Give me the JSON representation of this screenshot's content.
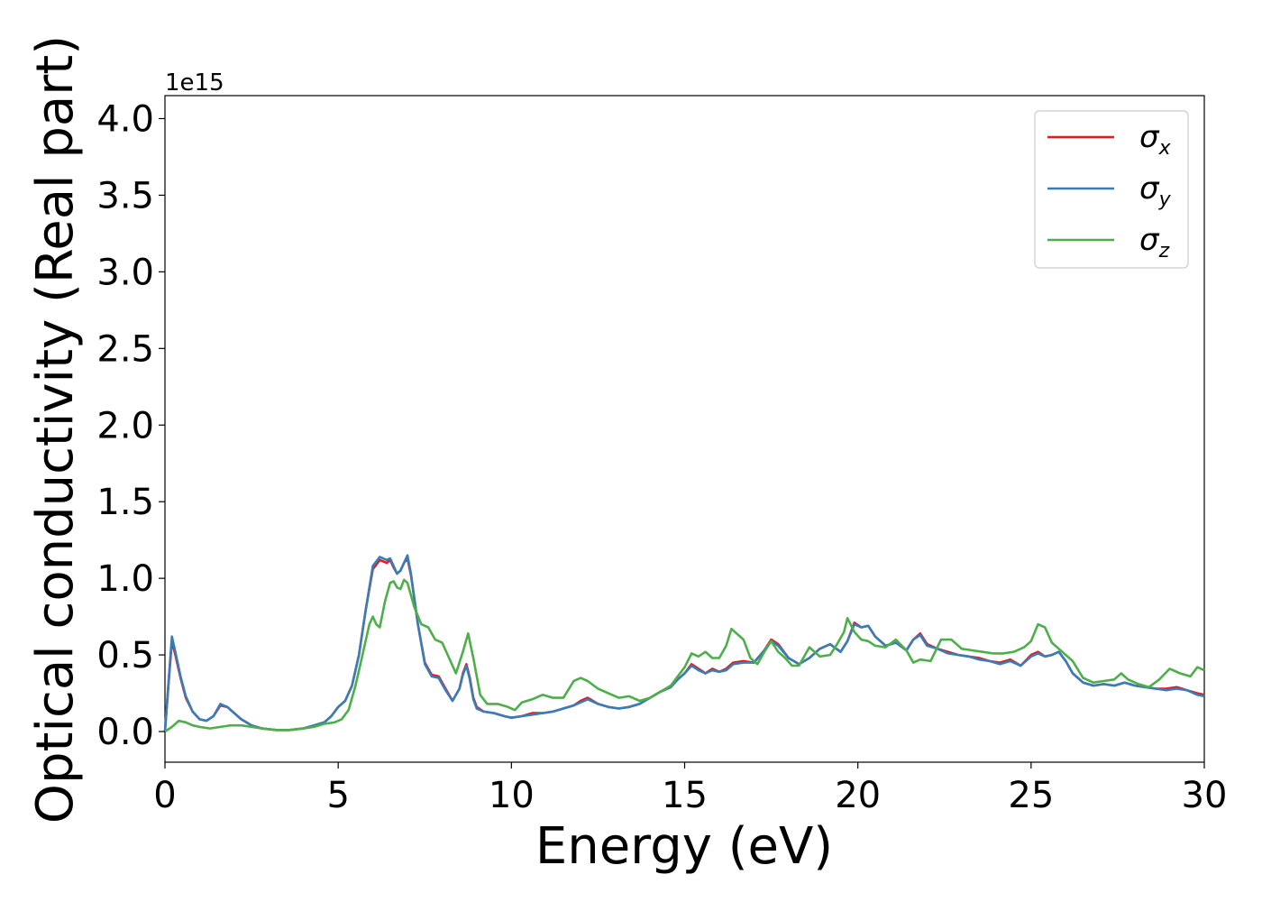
{
  "chart_data": {
    "type": "line",
    "xlabel": "Energy (eV)",
    "ylabel": "Optical conductivity (Real part)",
    "y_offset_text": "1e15",
    "xlim": [
      0,
      30
    ],
    "ylim": [
      -0.2,
      4.15
    ],
    "x_ticks": [
      0,
      5,
      10,
      15,
      20,
      25,
      30
    ],
    "x_tick_labels": [
      "0",
      "5",
      "10",
      "15",
      "20",
      "25",
      "30"
    ],
    "y_ticks": [
      0.0,
      0.5,
      1.0,
      1.5,
      2.0,
      2.5,
      3.0,
      3.5,
      4.0
    ],
    "y_tick_labels": [
      "0.0",
      "0.5",
      "1.0",
      "1.5",
      "2.0",
      "2.5",
      "3.0",
      "3.5",
      "4.0"
    ],
    "grid": false,
    "legend_position": "top-right",
    "series": [
      {
        "name": "σ",
        "subscript": "x",
        "color": "#e41a1c",
        "x": [
          0,
          0.1,
          0.2,
          0.3,
          0.45,
          0.6,
          0.8,
          1.0,
          1.2,
          1.4,
          1.6,
          1.8,
          2.0,
          2.2,
          2.5,
          2.8,
          3.2,
          3.6,
          4.0,
          4.3,
          4.6,
          4.8,
          5.0,
          5.2,
          5.4,
          5.6,
          5.8,
          6.0,
          6.2,
          6.4,
          6.5,
          6.6,
          6.7,
          6.8,
          6.9,
          7.0,
          7.1,
          7.3,
          7.5,
          7.7,
          7.9,
          8.1,
          8.3,
          8.5,
          8.6,
          8.7,
          8.8,
          8.9,
          9.0,
          9.2,
          9.5,
          9.8,
          10.0,
          10.3,
          10.6,
          10.9,
          11.2,
          11.5,
          11.8,
          12.0,
          12.2,
          12.5,
          12.8,
          13.1,
          13.4,
          13.7,
          14.0,
          14.3,
          14.6,
          14.8,
          15.0,
          15.2,
          15.4,
          15.6,
          15.8,
          16.0,
          16.2,
          16.4,
          16.7,
          17.0,
          17.3,
          17.5,
          17.7,
          18.0,
          18.3,
          18.6,
          18.9,
          19.2,
          19.5,
          19.7,
          19.9,
          20.1,
          20.3,
          20.5,
          20.8,
          21.1,
          21.4,
          21.6,
          21.8,
          22.0,
          22.3,
          22.6,
          22.9,
          23.2,
          23.5,
          23.8,
          24.1,
          24.4,
          24.7,
          25.0,
          25.2,
          25.4,
          25.6,
          25.8,
          26.0,
          26.2,
          26.5,
          26.8,
          27.1,
          27.4,
          27.7,
          28.0,
          28.3,
          28.6,
          28.9,
          29.2,
          29.5,
          29.8,
          30.0
        ],
        "y": [
          0.0,
          0.3,
          0.59,
          0.5,
          0.35,
          0.22,
          0.13,
          0.08,
          0.07,
          0.1,
          0.17,
          0.16,
          0.12,
          0.08,
          0.04,
          0.02,
          0.01,
          0.01,
          0.02,
          0.04,
          0.06,
          0.1,
          0.16,
          0.2,
          0.3,
          0.5,
          0.8,
          1.06,
          1.12,
          1.1,
          1.12,
          1.07,
          1.03,
          1.05,
          1.1,
          1.13,
          1.02,
          0.7,
          0.45,
          0.37,
          0.36,
          0.28,
          0.2,
          0.28,
          0.38,
          0.44,
          0.35,
          0.22,
          0.16,
          0.13,
          0.12,
          0.1,
          0.09,
          0.1,
          0.12,
          0.12,
          0.13,
          0.15,
          0.17,
          0.2,
          0.22,
          0.18,
          0.16,
          0.15,
          0.16,
          0.18,
          0.22,
          0.26,
          0.29,
          0.34,
          0.38,
          0.44,
          0.41,
          0.38,
          0.41,
          0.39,
          0.41,
          0.45,
          0.46,
          0.45,
          0.53,
          0.6,
          0.57,
          0.48,
          0.44,
          0.48,
          0.54,
          0.57,
          0.52,
          0.59,
          0.71,
          0.68,
          0.69,
          0.62,
          0.56,
          0.58,
          0.53,
          0.6,
          0.64,
          0.57,
          0.54,
          0.52,
          0.5,
          0.49,
          0.48,
          0.46,
          0.45,
          0.47,
          0.43,
          0.5,
          0.52,
          0.49,
          0.5,
          0.52,
          0.46,
          0.38,
          0.32,
          0.3,
          0.31,
          0.3,
          0.32,
          0.3,
          0.29,
          0.28,
          0.28,
          0.29,
          0.27,
          0.25,
          0.24
        ]
      },
      {
        "name": "σ",
        "subscript": "y",
        "color": "#377eb8",
        "x": [
          0,
          0.1,
          0.2,
          0.3,
          0.45,
          0.6,
          0.8,
          1.0,
          1.2,
          1.4,
          1.6,
          1.8,
          2.0,
          2.2,
          2.5,
          2.8,
          3.2,
          3.6,
          4.0,
          4.3,
          4.6,
          4.8,
          5.0,
          5.2,
          5.4,
          5.6,
          5.8,
          6.0,
          6.2,
          6.4,
          6.5,
          6.6,
          6.7,
          6.8,
          6.9,
          7.0,
          7.1,
          7.3,
          7.5,
          7.7,
          7.9,
          8.1,
          8.3,
          8.5,
          8.6,
          8.7,
          8.8,
          8.9,
          9.0,
          9.2,
          9.5,
          9.8,
          10.0,
          10.3,
          10.6,
          10.9,
          11.2,
          11.5,
          11.8,
          12.0,
          12.2,
          12.5,
          12.8,
          13.1,
          13.4,
          13.7,
          14.0,
          14.3,
          14.6,
          14.8,
          15.0,
          15.2,
          15.4,
          15.6,
          15.8,
          16.0,
          16.2,
          16.4,
          16.7,
          17.0,
          17.3,
          17.5,
          17.7,
          18.0,
          18.3,
          18.6,
          18.9,
          19.2,
          19.5,
          19.7,
          19.9,
          20.1,
          20.3,
          20.5,
          20.8,
          21.1,
          21.4,
          21.6,
          21.8,
          22.0,
          22.3,
          22.6,
          22.9,
          23.2,
          23.5,
          23.8,
          24.1,
          24.4,
          24.7,
          25.0,
          25.2,
          25.4,
          25.6,
          25.8,
          26.0,
          26.2,
          26.5,
          26.8,
          27.1,
          27.4,
          27.7,
          28.0,
          28.3,
          28.6,
          28.9,
          29.2,
          29.5,
          29.8,
          30.0
        ],
        "y": [
          0.0,
          0.31,
          0.62,
          0.52,
          0.36,
          0.23,
          0.13,
          0.08,
          0.07,
          0.1,
          0.18,
          0.16,
          0.12,
          0.08,
          0.04,
          0.02,
          0.01,
          0.01,
          0.02,
          0.04,
          0.06,
          0.1,
          0.16,
          0.2,
          0.3,
          0.5,
          0.8,
          1.08,
          1.14,
          1.12,
          1.13,
          1.08,
          1.03,
          1.05,
          1.1,
          1.15,
          1.03,
          0.7,
          0.44,
          0.36,
          0.35,
          0.27,
          0.2,
          0.28,
          0.37,
          0.43,
          0.34,
          0.21,
          0.15,
          0.13,
          0.12,
          0.1,
          0.09,
          0.1,
          0.11,
          0.12,
          0.13,
          0.15,
          0.17,
          0.19,
          0.21,
          0.18,
          0.16,
          0.15,
          0.16,
          0.18,
          0.22,
          0.26,
          0.29,
          0.34,
          0.38,
          0.43,
          0.4,
          0.38,
          0.4,
          0.39,
          0.4,
          0.44,
          0.45,
          0.45,
          0.53,
          0.59,
          0.56,
          0.48,
          0.44,
          0.48,
          0.54,
          0.57,
          0.52,
          0.59,
          0.7,
          0.68,
          0.69,
          0.62,
          0.56,
          0.58,
          0.53,
          0.6,
          0.63,
          0.56,
          0.54,
          0.51,
          0.5,
          0.49,
          0.47,
          0.46,
          0.44,
          0.46,
          0.43,
          0.49,
          0.51,
          0.49,
          0.5,
          0.52,
          0.46,
          0.38,
          0.32,
          0.3,
          0.31,
          0.3,
          0.32,
          0.3,
          0.29,
          0.28,
          0.27,
          0.28,
          0.27,
          0.24,
          0.23
        ]
      },
      {
        "name": "σ",
        "subscript": "z",
        "color": "#4daf4a",
        "x": [
          0,
          0.2,
          0.4,
          0.6,
          0.8,
          1.0,
          1.3,
          1.6,
          1.9,
          2.2,
          2.5,
          2.8,
          3.2,
          3.6,
          4.0,
          4.3,
          4.6,
          4.9,
          5.1,
          5.3,
          5.5,
          5.7,
          5.9,
          6.0,
          6.1,
          6.2,
          6.35,
          6.5,
          6.6,
          6.7,
          6.8,
          6.9,
          7.0,
          7.2,
          7.4,
          7.6,
          7.8,
          8.0,
          8.2,
          8.4,
          8.6,
          8.75,
          8.9,
          9.1,
          9.3,
          9.6,
          9.9,
          10.1,
          10.3,
          10.6,
          10.9,
          11.2,
          11.5,
          11.8,
          12.0,
          12.2,
          12.5,
          12.8,
          13.1,
          13.4,
          13.7,
          14.0,
          14.3,
          14.6,
          14.8,
          15.0,
          15.2,
          15.4,
          15.6,
          15.8,
          16.0,
          16.2,
          16.35,
          16.5,
          16.7,
          16.9,
          17.1,
          17.3,
          17.5,
          17.7,
          17.9,
          18.1,
          18.3,
          18.6,
          18.9,
          19.2,
          19.4,
          19.6,
          19.7,
          19.9,
          20.1,
          20.3,
          20.5,
          20.8,
          21.1,
          21.4,
          21.6,
          21.8,
          22.1,
          22.4,
          22.7,
          23.0,
          23.3,
          23.6,
          23.9,
          24.2,
          24.5,
          24.8,
          25.0,
          25.2,
          25.4,
          25.6,
          25.8,
          26.0,
          26.2,
          26.5,
          26.8,
          27.1,
          27.4,
          27.6,
          27.8,
          28.1,
          28.4,
          28.7,
          29.0,
          29.3,
          29.6,
          29.8,
          30.0
        ],
        "y": [
          0.0,
          0.03,
          0.07,
          0.06,
          0.04,
          0.03,
          0.02,
          0.03,
          0.04,
          0.04,
          0.03,
          0.02,
          0.01,
          0.01,
          0.02,
          0.03,
          0.05,
          0.06,
          0.08,
          0.14,
          0.3,
          0.5,
          0.7,
          0.75,
          0.7,
          0.68,
          0.85,
          0.97,
          0.98,
          0.94,
          0.93,
          0.99,
          0.97,
          0.81,
          0.7,
          0.68,
          0.6,
          0.58,
          0.48,
          0.38,
          0.52,
          0.64,
          0.48,
          0.24,
          0.18,
          0.18,
          0.16,
          0.14,
          0.19,
          0.21,
          0.24,
          0.22,
          0.22,
          0.33,
          0.35,
          0.33,
          0.28,
          0.25,
          0.22,
          0.23,
          0.2,
          0.22,
          0.26,
          0.3,
          0.36,
          0.42,
          0.51,
          0.49,
          0.52,
          0.48,
          0.48,
          0.56,
          0.67,
          0.64,
          0.6,
          0.48,
          0.44,
          0.52,
          0.59,
          0.52,
          0.48,
          0.43,
          0.43,
          0.55,
          0.49,
          0.5,
          0.57,
          0.65,
          0.74,
          0.65,
          0.6,
          0.59,
          0.56,
          0.55,
          0.6,
          0.53,
          0.45,
          0.47,
          0.46,
          0.6,
          0.6,
          0.54,
          0.53,
          0.52,
          0.51,
          0.51,
          0.52,
          0.55,
          0.59,
          0.7,
          0.68,
          0.58,
          0.54,
          0.5,
          0.46,
          0.35,
          0.32,
          0.33,
          0.34,
          0.38,
          0.34,
          0.31,
          0.29,
          0.34,
          0.41,
          0.38,
          0.36,
          0.42,
          0.4
        ]
      }
    ]
  }
}
